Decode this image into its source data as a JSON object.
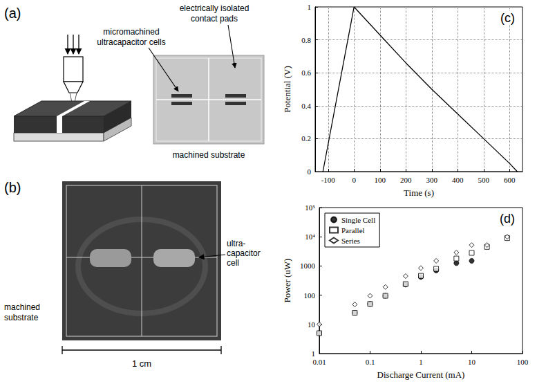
{
  "panels": {
    "a": {
      "label": "(a)",
      "cell_label": [
        "micromachined",
        "ultracapacitor cells"
      ],
      "pad_label": [
        "electrically isolated",
        "contact pads"
      ],
      "substrate_label": "machined substrate"
    },
    "b": {
      "label": "(b)",
      "cell_label": [
        "ultra-",
        "capacitor",
        "cell"
      ],
      "substrate_label": [
        "machined",
        "substrate"
      ],
      "scale_label": "1 cm"
    }
  },
  "chart_data": [
    {
      "type": "line",
      "annotations": [
        "(c)"
      ],
      "x_label": "Time (s)",
      "y_label": "Potential (V)",
      "x": [
        -120,
        0,
        100,
        200,
        300,
        400,
        500,
        600,
        630
      ],
      "values": [
        0,
        1,
        0.83,
        0.66,
        0.5,
        0.35,
        0.2,
        0.05,
        0
      ],
      "color": "#000000",
      "xlim": [
        -150,
        650
      ],
      "xticks": [
        -100,
        0,
        100,
        200,
        300,
        400,
        500,
        600
      ],
      "ylim": [
        0,
        1
      ],
      "yticks": [
        0,
        0.2,
        0.4,
        0.6,
        0.8,
        1
      ],
      "grid": true
    },
    {
      "type": "scatter",
      "annotations": [
        "(d)"
      ],
      "x_label": "Discharge Current (mA)",
      "y_label": "Power (uW)",
      "log": true,
      "legend": "upper left",
      "x": [
        0.01,
        0.05,
        0.1,
        0.2,
        0.5,
        1,
        2,
        5,
        10,
        20,
        50
      ],
      "series": [
        {
          "name": "Single Cell",
          "color": "#000000",
          "marker": "filled-circle",
          "values": [
            5,
            25,
            50,
            95,
            230,
            420,
            700,
            1250,
            1500,
            null,
            null
          ]
        },
        {
          "name": "Parallel",
          "color": "#000000",
          "marker": "open-square",
          "values": [
            5,
            25,
            50,
            95,
            240,
            460,
            800,
            1800,
            2800,
            4500,
            9000
          ]
        },
        {
          "name": "Series",
          "color": "#000000",
          "marker": "open-diamond",
          "values": [
            10,
            48,
            95,
            190,
            450,
            850,
            1500,
            2900,
            5200,
            5200,
            10000
          ]
        }
      ],
      "xlim": [
        0.01,
        100
      ],
      "xticks": [
        0.01,
        0.1,
        1,
        10,
        100
      ],
      "ylim": [
        1,
        100000
      ],
      "yticks": [
        1,
        10,
        100,
        1000,
        {
          "value": 10000,
          "label": "10⁴"
        },
        {
          "value": 100000,
          "label": "10⁵"
        }
      ],
      "grid": false
    }
  ]
}
